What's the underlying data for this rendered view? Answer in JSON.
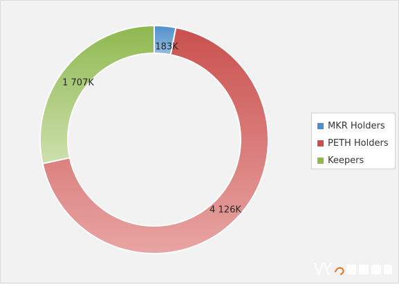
{
  "chart_data": {
    "type": "pie",
    "style": "donut",
    "slices": [
      {
        "name": "MKR Holders",
        "value": 183,
        "label": "183K",
        "color": "#4f8fc9",
        "color_light": "#93bde3"
      },
      {
        "name": "PETH Holders",
        "value": 4126,
        "label": "4 126K",
        "color": "#c9504e",
        "color_light": "#e8a5a3"
      },
      {
        "name": "Keepers",
        "value": 1707,
        "label": "1 707K",
        "color": "#8fb84f",
        "color_light": "#cde0ae"
      }
    ],
    "legend": {
      "position": "right",
      "entries": [
        "MKR Holders",
        "PETH Holders",
        "Keepers"
      ]
    }
  },
  "watermark": {
    "icon": "publisher-logo"
  }
}
